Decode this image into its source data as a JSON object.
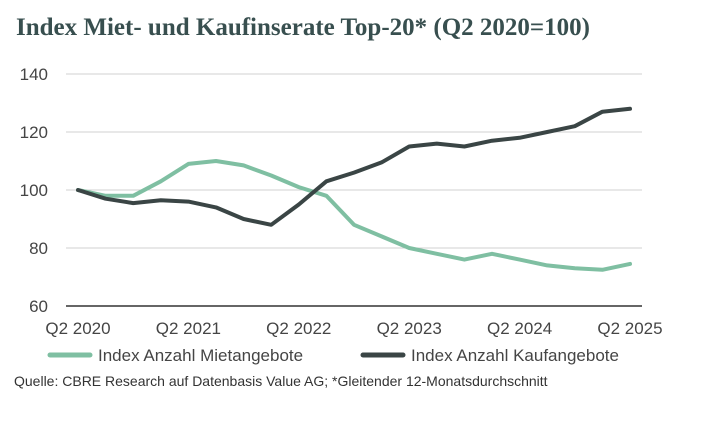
{
  "title": "Index Miet- und Kaufinserate Top-20* (Q2 2020=100)",
  "source": "Quelle: CBRE Research auf Datenbasis Value AG; *Gleitender 12-Monatsdurchschnitt",
  "colors": {
    "miete": "#7fbfa2",
    "kauf": "#3a4545",
    "grid": "#d0d0d0",
    "axis": "#333333"
  },
  "chart_data": {
    "type": "line",
    "title": "Index Miet- und Kaufinserate Top-20* (Q2 2020=100)",
    "x_tick_labels": [
      "Q2 2020",
      "Q2 2021",
      "Q2 2022",
      "Q2 2023",
      "Q2 2024",
      "Q2 2025"
    ],
    "y_tick_labels": [
      "60",
      "80",
      "100",
      "120",
      "140"
    ],
    "ylim": [
      60,
      140
    ],
    "xlim": [
      2020.25,
      2025.25
    ],
    "grid": true,
    "legend_position": "bottom",
    "x": [
      2020.25,
      2020.5,
      2020.75,
      2021.0,
      2021.25,
      2021.5,
      2021.75,
      2022.0,
      2022.25,
      2022.5,
      2022.75,
      2023.0,
      2023.25,
      2023.5,
      2023.75,
      2024.0,
      2024.25,
      2024.5,
      2024.75,
      2025.0,
      2025.25
    ],
    "series": [
      {
        "name": "Index Anzahl Mietangebote",
        "color": "#7fbfa2",
        "values": [
          100,
          98,
          98,
          103,
          109,
          110,
          108.5,
          105,
          101,
          98,
          88,
          84,
          80,
          78,
          76,
          78,
          76,
          74,
          73,
          72.5,
          74.5
        ]
      },
      {
        "name": "Index Anzahl Kaufangebote",
        "color": "#3a4545",
        "values": [
          100,
          97,
          95.5,
          96.5,
          96,
          94,
          90,
          88,
          95,
          103,
          106,
          109.5,
          115,
          116,
          115,
          117,
          118,
          120,
          122,
          127,
          128
        ]
      }
    ]
  }
}
